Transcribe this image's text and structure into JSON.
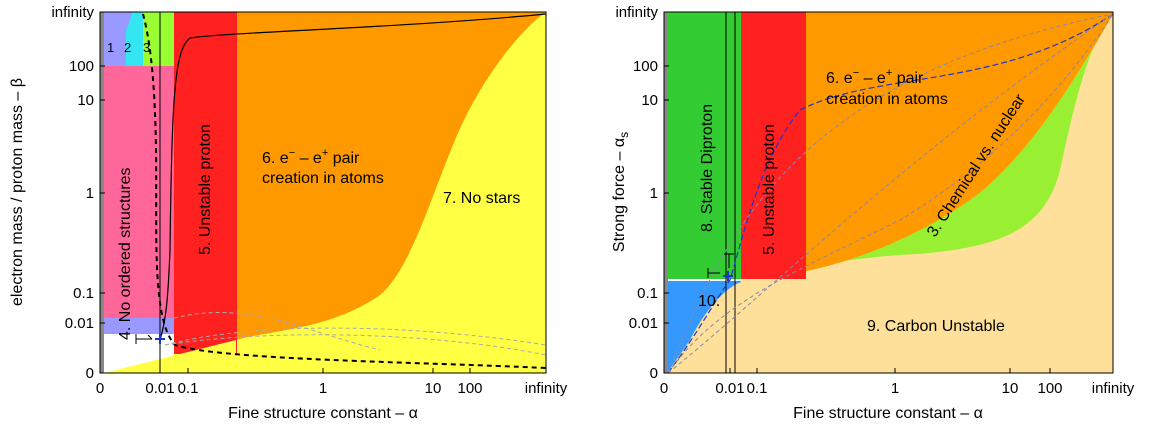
{
  "chart_data": [
    {
      "type": "area",
      "panel": "left",
      "xlabel": "Fine structure constant – α",
      "ylabel": "electron mass / proton mass – β",
      "x_ticks": [
        "0",
        "0.01",
        "0.1",
        "1",
        "10",
        "100",
        "infinity"
      ],
      "y_ticks": [
        "0",
        "0.01",
        "0.1",
        "1",
        "10",
        "100",
        "infinity"
      ],
      "observed_point": {
        "alpha": 0.0073,
        "beta": 0.000544
      },
      "regions": [
        {
          "id": 1,
          "label": "1",
          "color": "#9999ff"
        },
        {
          "id": 2,
          "label": "2",
          "color": "#33e6f2"
        },
        {
          "id": 3,
          "label": "3",
          "color": "#99ff33"
        },
        {
          "id": 4,
          "label": "4. No ordered structures",
          "color": "#ff6699"
        },
        {
          "id": 5,
          "label": "5. Unstable proton",
          "color": "#ff2020"
        },
        {
          "id": 6,
          "label_line1": "6. e",
          "label_line1b": " – e",
          "label_line2": "pair",
          "label_line3": "creation in atoms",
          "color": "#ff9900"
        },
        {
          "id": 7,
          "label": "7. No stars",
          "color": "#ffff44"
        }
      ]
    },
    {
      "type": "area",
      "panel": "right",
      "xlabel": "Fine structure constant – α",
      "ylabel": "Strong force – α",
      "ylabel_sub": "s",
      "x_ticks": [
        "0",
        "0.01",
        "0.1",
        "1",
        "10",
        "100",
        "infinity"
      ],
      "y_ticks": [
        "0",
        "0.01",
        "0.1",
        "1",
        "10",
        "100",
        "infinity"
      ],
      "observed_point": {
        "alpha": 0.0073,
        "alpha_s": 0.118
      },
      "regions": [
        {
          "id": 3,
          "label": "3. Chemical vs. nuclear",
          "color": "#99f033"
        },
        {
          "id": 5,
          "label": "5. Unstable proton",
          "color": "#ff2020"
        },
        {
          "id": 6,
          "label_line1": "6. e",
          "label_line1b": " – e",
          "label_line2": "pair",
          "label_line3": "creation in atoms",
          "color": "#ff9900"
        },
        {
          "id": 8,
          "label": "8. Stable Diproton",
          "color": "#33cc33"
        },
        {
          "id": 9,
          "label": "9. Carbon Unstable",
          "color": "#ffe09a"
        },
        {
          "id": 10,
          "label": "10.",
          "color": "#3399ff"
        }
      ]
    }
  ],
  "symbols": {
    "minus_sup": "−",
    "plus_sup": "+"
  }
}
